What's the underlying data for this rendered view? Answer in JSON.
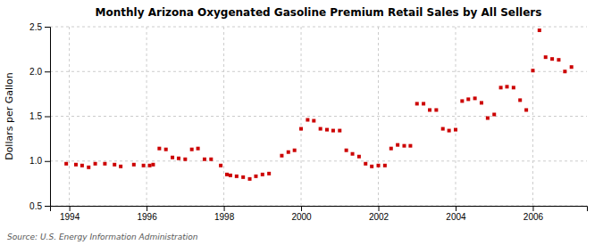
{
  "chart_data": {
    "type": "scatter",
    "title": "Monthly Arizona Oxygenated Gasoline Premium Retail Sales by All Sellers",
    "ylabel": "Dollars per Gallon",
    "annotations": [
      "Source: U.S. Energy Information Administration"
    ],
    "color": "#cc0000",
    "marker": "square",
    "grid": true,
    "xlim": [
      1993.5,
      2007.4
    ],
    "xticks": [
      1994,
      1996,
      1998,
      2000,
      2002,
      2004,
      2006
    ],
    "ylim": [
      0.5,
      2.5
    ],
    "yticks": [
      0.5,
      {
        "value": 1.0,
        "label": "1.0"
      },
      1.5,
      {
        "value": 2.0,
        "label": "2.0"
      },
      2.5
    ],
    "x": [
      1993.92,
      1994.17,
      1994.33,
      1994.5,
      1994.67,
      1994.92,
      1995.17,
      1995.33,
      1995.67,
      1995.92,
      1996.08,
      1996.17,
      1996.33,
      1996.5,
      1996.67,
      1996.83,
      1997.0,
      1997.17,
      1997.33,
      1997.5,
      1997.67,
      1997.92,
      1998.08,
      1998.17,
      1998.33,
      1998.5,
      1998.67,
      1998.83,
      1999.0,
      1999.17,
      1999.5,
      1999.67,
      1999.83,
      2000.0,
      2000.17,
      2000.33,
      2000.5,
      2000.67,
      2000.83,
      2001.0,
      2001.17,
      2001.33,
      2001.5,
      2001.67,
      2001.83,
      2002.0,
      2002.17,
      2002.33,
      2002.5,
      2002.67,
      2002.83,
      2003.0,
      2003.17,
      2003.33,
      2003.5,
      2003.67,
      2003.83,
      2004.0,
      2004.17,
      2004.33,
      2004.5,
      2004.67,
      2004.83,
      2005.0,
      2005.17,
      2005.33,
      2005.5,
      2005.67,
      2005.83,
      2006.0,
      2006.17,
      2006.33,
      2006.5,
      2006.67,
      2006.83,
      2007.0
    ],
    "values": [
      0.97,
      0.96,
      0.95,
      0.93,
      0.97,
      0.97,
      0.96,
      0.94,
      0.96,
      0.95,
      0.95,
      0.96,
      1.14,
      1.13,
      1.04,
      1.03,
      1.02,
      1.13,
      1.14,
      1.02,
      1.02,
      0.95,
      0.85,
      0.84,
      0.83,
      0.82,
      0.8,
      0.83,
      0.85,
      0.86,
      1.06,
      1.1,
      1.12,
      1.36,
      1.46,
      1.45,
      1.36,
      1.35,
      1.34,
      1.34,
      1.12,
      1.08,
      1.05,
      0.97,
      0.94,
      0.95,
      0.95,
      1.14,
      1.18,
      1.17,
      1.17,
      1.64,
      1.64,
      1.57,
      1.57,
      1.36,
      1.34,
      1.35,
      1.67,
      1.69,
      1.7,
      1.65,
      1.48,
      1.52,
      1.82,
      1.83,
      1.82,
      1.68,
      1.57,
      2.01,
      2.46,
      2.16,
      2.14,
      2.13,
      2.0,
      2.05
    ]
  }
}
